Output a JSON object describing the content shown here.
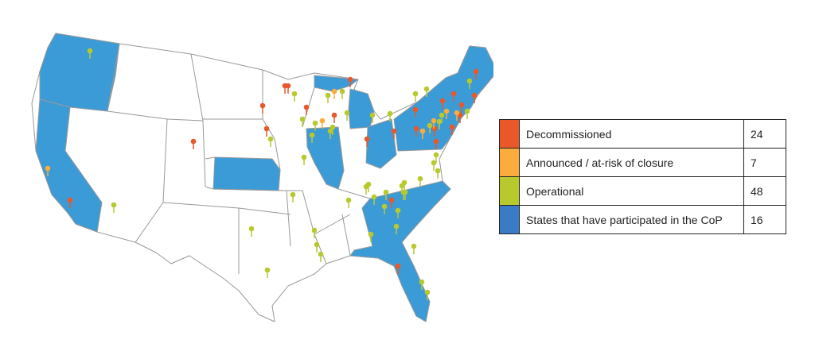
{
  "legend": {
    "rows": [
      {
        "label": "Decommissioned",
        "count": 24,
        "color": "#e8582a"
      },
      {
        "label": "Announced / at-risk of closure",
        "count": 7,
        "color": "#fbac3c"
      },
      {
        "label": "Operational",
        "count": 48,
        "color": "#b8c92d"
      },
      {
        "label": "States that have participated in the CoP",
        "count": 16,
        "color": "#3a7bc4"
      }
    ]
  }
}
